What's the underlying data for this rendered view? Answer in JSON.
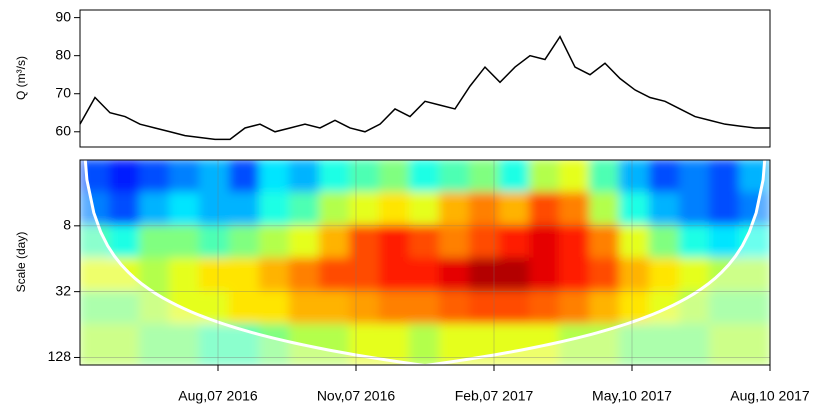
{
  "chart_data": [
    {
      "type": "line",
      "ylabel": "Q (m³/s)",
      "color": "#000000",
      "x": [
        "2016-05-07",
        "2016-05-17",
        "2016-05-27",
        "2016-06-06",
        "2016-06-16",
        "2016-06-26",
        "2016-07-06",
        "2016-07-16",
        "2016-07-26",
        "2016-08-05",
        "2016-08-15",
        "2016-08-25",
        "2016-09-04",
        "2016-09-14",
        "2016-09-24",
        "2016-10-04",
        "2016-10-14",
        "2016-10-24",
        "2016-11-03",
        "2016-11-13",
        "2016-11-23",
        "2016-12-03",
        "2016-12-13",
        "2016-12-23",
        "2017-01-02",
        "2017-01-12",
        "2017-01-22",
        "2017-02-01",
        "2017-02-11",
        "2017-02-21",
        "2017-03-03",
        "2017-03-13",
        "2017-03-23",
        "2017-04-02",
        "2017-04-12",
        "2017-04-22",
        "2017-05-02",
        "2017-05-12",
        "2017-05-22",
        "2017-06-01",
        "2017-06-11",
        "2017-06-21",
        "2017-07-01",
        "2017-07-11",
        "2017-07-21",
        "2017-07-31",
        "2017-08-10"
      ],
      "values": [
        62,
        69,
        65,
        64,
        62,
        61,
        60,
        59,
        58.5,
        58,
        58,
        61,
        62,
        60,
        61,
        62,
        61,
        63,
        61,
        60,
        62,
        66,
        64,
        68,
        67,
        66,
        72,
        77,
        73,
        77,
        80,
        79,
        85,
        77,
        75,
        78,
        74,
        71,
        69,
        68,
        66,
        64,
        63,
        62,
        61.5,
        61,
        61
      ],
      "xlim": [
        "2016-05-07",
        "2017-08-10"
      ],
      "ylim": [
        56,
        92
      ],
      "yticks": [
        60,
        70,
        80,
        90
      ]
    },
    {
      "type": "heatmap",
      "ylabel": "Scale (day)",
      "colormap": "jet",
      "ylog": true,
      "yinvert": true,
      "grid": true,
      "time_edges": [
        "2016-05-07",
        "2016-05-27",
        "2016-06-16",
        "2016-07-06",
        "2016-07-26",
        "2016-08-15",
        "2016-09-04",
        "2016-09-24",
        "2016-10-14",
        "2016-11-03",
        "2016-11-23",
        "2016-12-13",
        "2017-01-02",
        "2017-01-22",
        "2017-02-11",
        "2017-03-03",
        "2017-03-23",
        "2017-04-12",
        "2017-05-02",
        "2017-05-22",
        "2017-06-11",
        "2017-07-01",
        "2017-07-21",
        "2017-08-10"
      ],
      "scale_edges": [
        2,
        4,
        8,
        16,
        32,
        64,
        150
      ],
      "power": [
        [
          0.2,
          0.15,
          0.2,
          0.25,
          0.3,
          0.2,
          0.35,
          0.3,
          0.4,
          0.45,
          0.5,
          0.4,
          0.45,
          0.5,
          0.4,
          0.55,
          0.6,
          0.45,
          0.3,
          0.2,
          0.25,
          0.2,
          0.3
        ],
        [
          0.25,
          0.2,
          0.3,
          0.35,
          0.3,
          0.3,
          0.4,
          0.45,
          0.55,
          0.6,
          0.65,
          0.6,
          0.7,
          0.75,
          0.7,
          0.8,
          0.75,
          0.55,
          0.4,
          0.3,
          0.25,
          0.2,
          0.25
        ],
        [
          0.45,
          0.4,
          0.5,
          0.5,
          0.45,
          0.5,
          0.55,
          0.6,
          0.7,
          0.8,
          0.85,
          0.8,
          0.75,
          0.8,
          0.85,
          0.9,
          0.85,
          0.75,
          0.6,
          0.5,
          0.4,
          0.35,
          0.4
        ],
        [
          0.6,
          0.6,
          0.55,
          0.6,
          0.65,
          0.65,
          0.7,
          0.75,
          0.8,
          0.8,
          0.85,
          0.85,
          0.9,
          0.95,
          0.95,
          0.9,
          0.85,
          0.8,
          0.7,
          0.65,
          0.6,
          0.55,
          0.55
        ],
        [
          0.5,
          0.5,
          0.55,
          0.6,
          0.6,
          0.65,
          0.65,
          0.7,
          0.7,
          0.72,
          0.75,
          0.75,
          0.78,
          0.8,
          0.8,
          0.78,
          0.75,
          0.7,
          0.65,
          0.6,
          0.55,
          0.5,
          0.5
        ],
        [
          0.55,
          0.55,
          0.5,
          0.5,
          0.45,
          0.45,
          0.5,
          0.55,
          0.55,
          0.6,
          0.6,
          0.55,
          0.6,
          0.6,
          0.6,
          0.6,
          0.55,
          0.55,
          0.5,
          0.5,
          0.5,
          0.55,
          0.55
        ]
      ],
      "xlim": [
        "2016-05-07",
        "2017-08-10"
      ],
      "ylim": [
        2,
        150
      ],
      "yticks": [
        8,
        32,
        128
      ],
      "xticks": [
        {
          "value": "2016-08-07",
          "label": "Aug,07 2016"
        },
        {
          "value": "2016-11-07",
          "label": "Nov,07 2016"
        },
        {
          "value": "2017-02-07",
          "label": "Feb,07 2017"
        },
        {
          "value": "2017-05-10",
          "label": "May,10 2017"
        },
        {
          "value": "2017-08-10",
          "label": "Aug,10 2017"
        }
      ]
    }
  ]
}
